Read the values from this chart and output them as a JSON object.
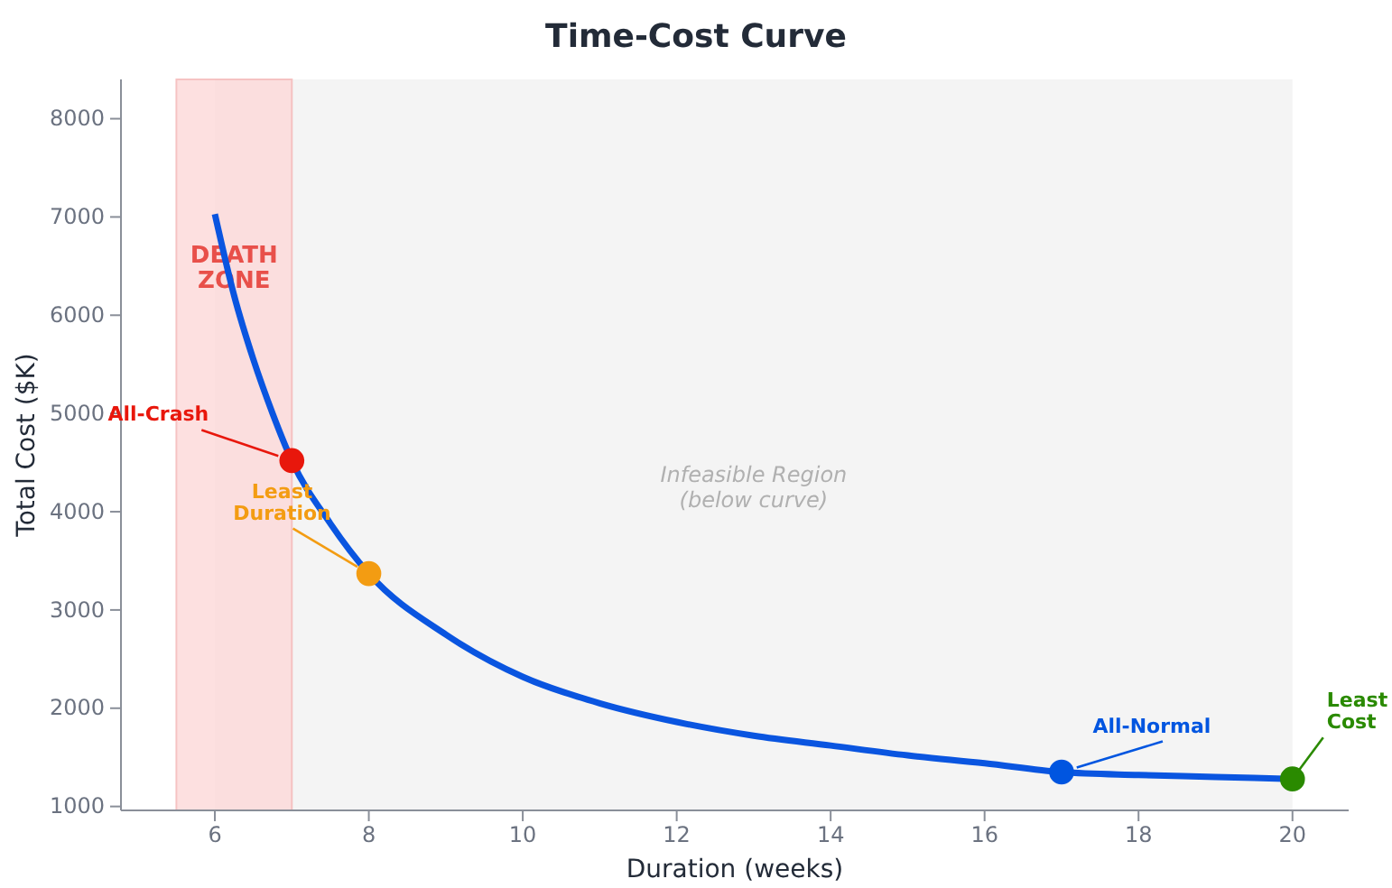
{
  "chart_data": {
    "type": "line",
    "title": "Time-Cost Curve",
    "xlabel": "Duration (weeks)",
    "ylabel": "Total Cost ($K)",
    "xlim": [
      4.78,
      20.73
    ],
    "xticks": [
      6,
      8,
      10,
      12,
      14,
      16,
      18,
      20
    ],
    "ylim": [
      960,
      8400
    ],
    "yticks": [
      1000,
      2000,
      3000,
      4000,
      5000,
      6000,
      7000,
      8000
    ],
    "grid": false,
    "series": [
      {
        "color": "#0a55e0",
        "marker": "none",
        "line_style": "solid",
        "x": [
          6,
          6.25,
          6.5,
          6.75,
          7,
          7.5,
          8,
          9,
          10,
          11,
          12,
          13,
          14,
          15,
          16,
          17,
          18,
          19,
          20
        ],
        "values": [
          7030,
          6200,
          5550,
          5000,
          4520,
          3880,
          3370,
          2750,
          2320,
          2050,
          1860,
          1720,
          1620,
          1520,
          1440,
          1350,
          1320,
          1300,
          1280
        ]
      },
      {
        "type": "scatter",
        "color": "#e8170c",
        "marker": "circle",
        "x": [
          7
        ],
        "values": [
          4520
        ]
      },
      {
        "type": "scatter",
        "color": "#f39c12",
        "marker": "circle",
        "x": [
          8
        ],
        "values": [
          3370
        ]
      },
      {
        "type": "scatter",
        "color": "#0055e0",
        "marker": "circle",
        "x": [
          17
        ],
        "values": [
          1350
        ]
      },
      {
        "type": "scatter",
        "color": "#2a8a00",
        "marker": "circle",
        "x": [
          20
        ],
        "values": [
          1280
        ]
      }
    ],
    "bands": [
      {
        "axis": "x",
        "from": 5.5,
        "to": 7,
        "label": "DEATH\nZONE",
        "color": "#fdd9d9"
      },
      {
        "axis": "x",
        "from": 6,
        "to": 20,
        "label": "Infeasible Region\n(below curve)",
        "color": "#f0f0f0"
      }
    ],
    "annotations": [
      {
        "text": "All-Crash",
        "x": 7,
        "y": 4520
      },
      {
        "text": "Least\nDuration",
        "x": 8,
        "y": 3370
      },
      {
        "text": "All-Normal",
        "x": 17,
        "y": 1350
      },
      {
        "text": "Least\nCost",
        "x": 20,
        "y": 1280
      }
    ]
  }
}
